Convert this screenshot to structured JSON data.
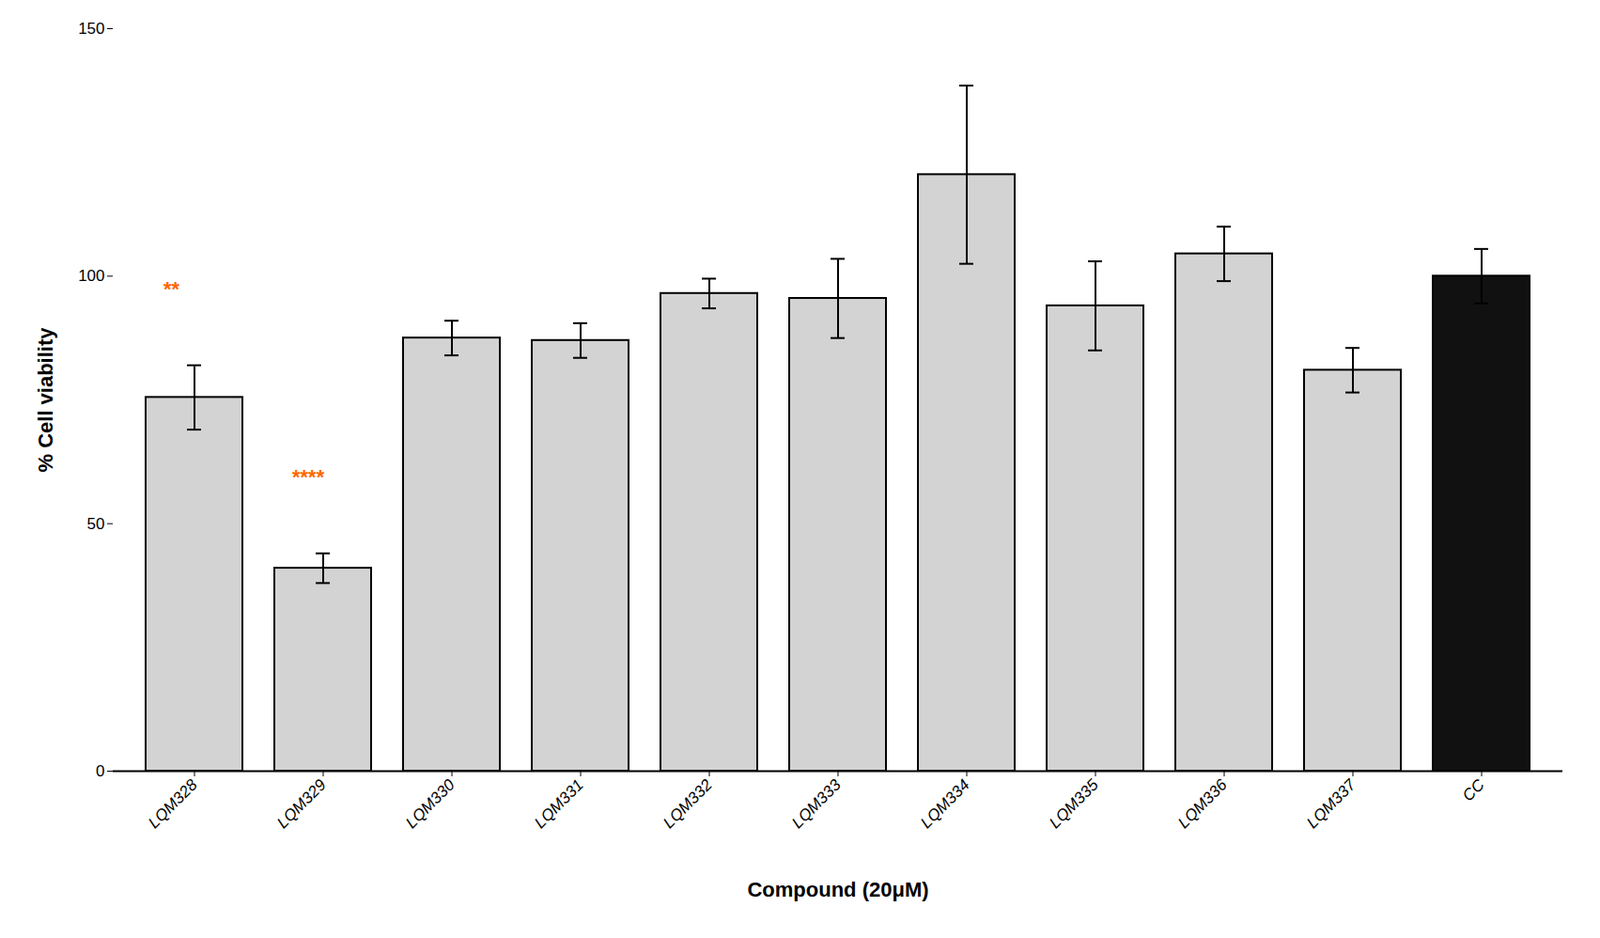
{
  "chart_data": {
    "type": "bar",
    "categories": [
      "LQM328",
      "LQM329",
      "LQM330",
      "LQM331",
      "LQM332",
      "LQM333",
      "LQM334",
      "LQM335",
      "LQM336",
      "LQM337",
      "CC"
    ],
    "values": [
      75.5,
      41.0,
      87.5,
      87.0,
      96.5,
      95.5,
      120.5,
      94.0,
      104.5,
      81.0,
      100.0
    ],
    "errors": [
      6.5,
      3.0,
      3.5,
      3.5,
      3.0,
      8.0,
      18.0,
      9.0,
      5.5,
      4.5,
      5.5
    ],
    "colors": [
      "#d3d3d3",
      "#d3d3d3",
      "#d3d3d3",
      "#d3d3d3",
      "#d3d3d3",
      "#d3d3d3",
      "#d3d3d3",
      "#d3d3d3",
      "#d3d3d3",
      "#d3d3d3",
      "#111111"
    ],
    "ylabel": "% Cell viability",
    "xlabel": "Compound (20μM)",
    "ylim": [
      0,
      150
    ],
    "yticks": [
      0,
      50,
      100,
      150
    ],
    "grid": false,
    "annotations": [
      {
        "text": "**",
        "category": "LQM328",
        "y": 96,
        "color": "#FF6600"
      },
      {
        "text": "****",
        "category": "LQM329",
        "y": 58,
        "color": "#FF6600"
      }
    ]
  }
}
